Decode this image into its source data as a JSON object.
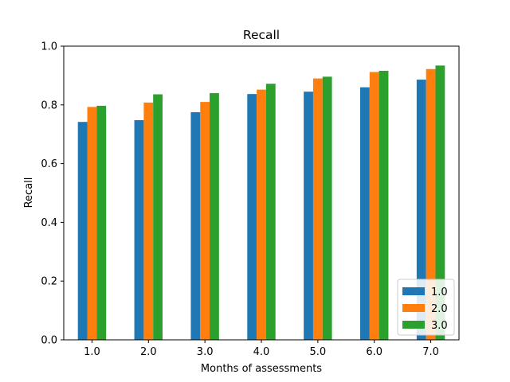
{
  "chart_data": {
    "type": "bar",
    "title": "Recall",
    "xlabel": "Months of assessments",
    "ylabel": "Recall",
    "categories": [
      "1.0",
      "2.0",
      "3.0",
      "4.0",
      "5.0",
      "6.0",
      "7.0"
    ],
    "series": [
      {
        "name": "1.0",
        "color": "#1f77b4",
        "values": [
          0.742,
          0.748,
          0.775,
          0.837,
          0.845,
          0.86,
          0.886
        ]
      },
      {
        "name": "2.0",
        "color": "#ff7f0e",
        "values": [
          0.793,
          0.808,
          0.81,
          0.852,
          0.89,
          0.912,
          0.922
        ]
      },
      {
        "name": "3.0",
        "color": "#2ca02c",
        "values": [
          0.797,
          0.836,
          0.84,
          0.872,
          0.896,
          0.916,
          0.934
        ]
      }
    ],
    "ylim": [
      0,
      1.0
    ],
    "yticks": [
      "0.0",
      "0.2",
      "0.4",
      "0.6",
      "0.8",
      "1.0"
    ],
    "grid": false,
    "legend_position": "lower-right"
  }
}
